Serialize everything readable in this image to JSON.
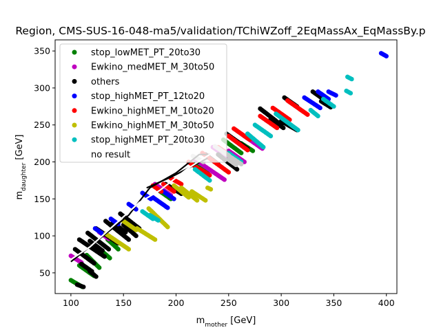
{
  "chart_data": {
    "type": "scatter",
    "title": "Region, CMS-SUS-16-048-ma5/validation/TChiWZoff_2EqMassAx_EqMassBy.p",
    "xlabel": "m_mother [GeV]",
    "ylabel": "m_daughter [GeV]",
    "xlim": [
      85,
      410
    ],
    "ylim": [
      22,
      365
    ],
    "xticks": [
      100,
      150,
      200,
      250,
      300,
      350,
      400
    ],
    "yticks": [
      50,
      100,
      150,
      200,
      250,
      300,
      350
    ],
    "legend_position": "top-left",
    "grid": false,
    "series": [
      {
        "name": "stop_lowMET_PT_20to30",
        "color": "#008000",
        "segments": [
          [
            [
              100,
              40
            ],
            [
              111,
              31
            ]
          ],
          [
            [
              108,
              60
            ],
            [
              122,
              46
            ]
          ],
          [
            [
              115,
              74
            ],
            [
              127,
              57
            ]
          ],
          [
            [
              125,
              85
            ],
            [
              137,
              70
            ]
          ],
          [
            [
              135,
              95
            ],
            [
              145,
              82
            ]
          ],
          [
            [
              155,
              120
            ],
            [
              165,
              109
            ]
          ],
          [
            [
              185,
              160
            ],
            [
              195,
              150
            ]
          ],
          [
            [
              215,
              198
            ],
            [
              230,
              186
            ]
          ],
          [
            [
              245,
              230
            ],
            [
              262,
              212
            ]
          ],
          [
            [
              262,
              225
            ],
            [
              273,
              215
            ]
          ]
        ]
      },
      {
        "name": "Ewkino_medMET_M_30to50",
        "color": "#bf00bf",
        "segments": [
          [
            [
              100,
              73
            ],
            [
              110,
              64
            ]
          ],
          [
            [
              127,
              105
            ],
            [
              136,
              96
            ]
          ],
          [
            [
              180,
              170
            ],
            [
              195,
              155
            ]
          ],
          [
            [
              218,
              203
            ],
            [
              246,
              176
            ]
          ],
          [
            [
              235,
              220
            ],
            [
              252,
              203
            ]
          ],
          [
            [
              250,
              215
            ],
            [
              265,
              200
            ]
          ],
          [
            [
              265,
              235
            ],
            [
              282,
              218
            ]
          ]
        ]
      },
      {
        "name": "others",
        "color": "#000000",
        "segments": [
          [
            [
              104,
              82
            ],
            [
              122,
              63
            ]
          ],
          [
            [
              108,
              95
            ],
            [
              132,
              72
            ]
          ],
          [
            [
              116,
              104
            ],
            [
              136,
              82
            ]
          ],
          [
            [
              118,
              93
            ],
            [
              130,
              80
            ]
          ],
          [
            [
              124,
              110
            ],
            [
              145,
              90
            ]
          ],
          [
            [
              133,
              120
            ],
            [
              155,
              95
            ]
          ],
          [
            [
              140,
              118
            ],
            [
              152,
              105
            ]
          ],
          [
            [
              147,
              130
            ],
            [
              165,
              110
            ]
          ],
          [
            [
              150,
              115
            ],
            [
              162,
              100
            ]
          ],
          [
            [
              190,
              170
            ],
            [
              205,
              157
            ]
          ],
          [
            [
              228,
              210
            ],
            [
              240,
              197
            ]
          ],
          [
            [
              240,
              210
            ],
            [
              258,
              190
            ]
          ],
          [
            [
              248,
              238
            ],
            [
              268,
              218
            ]
          ],
          [
            [
              280,
              272
            ],
            [
              300,
              250
            ]
          ],
          [
            [
              290,
              258
            ],
            [
              302,
              246
            ]
          ],
          [
            [
              300,
              255
            ],
            [
              315,
              243
            ]
          ],
          [
            [
              303,
              287
            ],
            [
              315,
              275
            ]
          ],
          [
            [
              330,
              295
            ],
            [
              345,
              280
            ]
          ],
          [
            [
              338,
              282
            ],
            [
              347,
              274
            ]
          ],
          [
            [
              110,
              62
            ],
            [
              120,
              52
            ]
          ],
          [
            [
              106,
              34
            ],
            [
              112,
              31
            ]
          ],
          [
            [
              118,
              52
            ],
            [
              124,
              45
            ]
          ]
        ]
      },
      {
        "name": "stop_highMET_PT_12to20",
        "color": "#0000ff",
        "segments": [
          [
            [
              123,
              110
            ],
            [
              130,
              103
            ]
          ],
          [
            [
              138,
              123
            ],
            [
              145,
              116
            ]
          ],
          [
            [
              155,
              143
            ],
            [
              162,
              136
            ]
          ],
          [
            [
              168,
              158
            ],
            [
              176,
              150
            ]
          ],
          [
            [
              178,
              152
            ],
            [
              192,
              138
            ]
          ],
          [
            [
              188,
              160
            ],
            [
              198,
              150
            ]
          ],
          [
            [
              322,
              287
            ],
            [
              337,
              273
            ]
          ],
          [
            [
              335,
              295
            ],
            [
              345,
              285
            ]
          ],
          [
            [
              345,
              295
            ],
            [
              352,
              290
            ]
          ],
          [
            [
              395,
              347
            ],
            [
              400,
              343
            ]
          ]
        ]
      },
      {
        "name": "Ewkino_highMET_M_10to20",
        "color": "#ff0000",
        "segments": [
          [
            [
              212,
              200
            ],
            [
              222,
              190
            ]
          ],
          [
            [
              223,
              190
            ],
            [
              232,
              182
            ]
          ],
          [
            [
              225,
              212
            ],
            [
              250,
              186
            ]
          ],
          [
            [
              240,
              220
            ],
            [
              260,
              200
            ]
          ],
          [
            [
              250,
              235
            ],
            [
              268,
              216
            ]
          ],
          [
            [
              255,
              245
            ],
            [
              270,
              230
            ]
          ],
          [
            [
              280,
              262
            ],
            [
              296,
              246
            ]
          ],
          [
            [
              292,
              273
            ],
            [
              308,
              257
            ]
          ],
          [
            [
              306,
              283
            ],
            [
              325,
              264
            ]
          ],
          [
            [
              188,
              170
            ],
            [
              198,
              160
            ]
          ],
          [
            [
              195,
              178
            ],
            [
              205,
              170
            ]
          ],
          [
            [
              178,
              168
            ],
            [
              186,
              160
            ]
          ]
        ]
      },
      {
        "name": "Ewkino_highMET_M_30to50",
        "color": "#bfbf00",
        "segments": [
          [
            [
              133,
              103
            ],
            [
              155,
              82
            ]
          ],
          [
            [
              150,
              120
            ],
            [
              162,
              108
            ]
          ],
          [
            [
              163,
              110
            ],
            [
              180,
              95
            ]
          ],
          [
            [
              174,
              137
            ],
            [
              192,
              112
            ]
          ],
          [
            [
              198,
              168
            ],
            [
              212,
              152
            ]
          ],
          [
            [
              205,
              165
            ],
            [
              220,
              148
            ]
          ],
          [
            [
              215,
              160
            ],
            [
              228,
              148
            ]
          ],
          [
            [
              230,
              165
            ],
            [
              233,
              163
            ]
          ]
        ]
      },
      {
        "name": "stop_highMET_PT_20to30",
        "color": "#00bfbf",
        "segments": [
          [
            [
              168,
              133
            ],
            [
              178,
              123
            ]
          ],
          [
            [
              175,
              128
            ],
            [
              183,
              121
            ]
          ],
          [
            [
              218,
              190
            ],
            [
              232,
              175
            ]
          ],
          [
            [
              250,
              212
            ],
            [
              262,
              200
            ]
          ],
          [
            [
              268,
              238
            ],
            [
              283,
              220
            ]
          ],
          [
            [
              275,
              250
            ],
            [
              290,
              235
            ]
          ],
          [
            [
              295,
              265
            ],
            [
              316,
              243
            ]
          ],
          [
            [
              328,
              270
            ],
            [
              335,
              262
            ]
          ],
          [
            [
              340,
              285
            ],
            [
              350,
              275
            ]
          ],
          [
            [
              363,
              315
            ],
            [
              367,
              312
            ]
          ],
          [
            [
              362,
              296
            ],
            [
              366,
              293
            ]
          ]
        ]
      },
      {
        "name": "no result",
        "color": "#c8c8c8",
        "segments": [
          [
            [
              237,
              221
            ],
            [
              250,
              209
            ]
          ],
          [
            [
              245,
              213
            ],
            [
              262,
              197
            ]
          ],
          [
            [
              250,
              203
            ],
            [
              257,
              196
            ]
          ],
          [
            [
              216,
              208
            ],
            [
              226,
              200
            ]
          ]
        ]
      }
    ],
    "lines": [
      {
        "color": "#000000",
        "points": [
          [
            100,
            65
          ],
          [
            115,
            82
          ],
          [
            155,
            128
          ],
          [
            175,
            165
          ],
          [
            200,
            185
          ],
          [
            222,
            210
          ],
          [
            232,
            210
          ]
        ]
      },
      {
        "color": "#000000",
        "points": [
          [
            172,
            165
          ],
          [
            196,
            180
          ],
          [
            230,
            205
          ]
        ]
      },
      {
        "color": "#ffffff",
        "points": [
          [
            100,
            68
          ],
          [
            118,
            85
          ],
          [
            165,
            145
          ],
          [
            185,
            162
          ],
          [
            210,
            190
          ],
          [
            232,
            210
          ]
        ]
      }
    ]
  }
}
